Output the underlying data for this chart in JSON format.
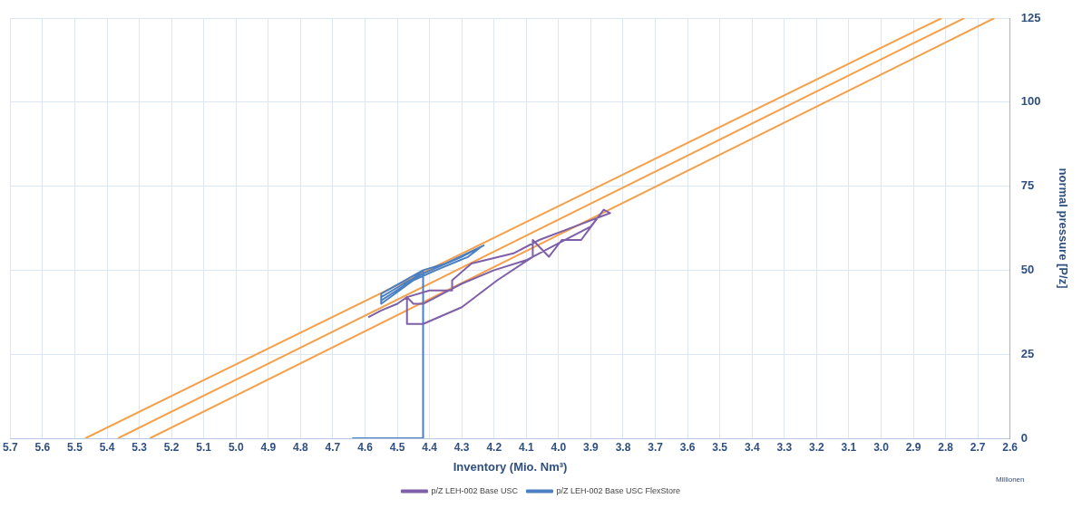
{
  "chart_data": {
    "type": "line",
    "xlabel": "Inventory (Mio. Nm³)",
    "ylabel": "normal pressure [P/z]",
    "annotations": [
      "Millionen"
    ],
    "xlim": [
      5.7,
      2.6
    ],
    "xticks": [
      5.7,
      5.6,
      5.5,
      5.4,
      5.3,
      5.2,
      5.1,
      {
        "value": 5,
        "label": "5.0"
      },
      4.9,
      4.8,
      4.7,
      4.6,
      4.5,
      4.4,
      4.3,
      4.2,
      4.1,
      {
        "value": 4,
        "label": "4.0"
      },
      3.9,
      3.8,
      3.7,
      3.6,
      3.5,
      3.4,
      3.3,
      3.2,
      3.1,
      {
        "value": 3,
        "label": "3.0"
      },
      2.9,
      2.8,
      2.7,
      2.6
    ],
    "ylim": [
      0,
      125
    ],
    "yticks": [
      0,
      25,
      50,
      75,
      100,
      125
    ],
    "grid": true,
    "legend": "bottom",
    "marker": "none",
    "line_style": "solid",
    "series": [
      {
        "name": "p/Z LEH-002 Base USC",
        "color": "#7e5fa8",
        "x": [
          4.59,
          4.55,
          4.5,
          4.47,
          4.47,
          4.42,
          4.3,
          4.19,
          4.08,
          4.08,
          4.03,
          3.99,
          3.93,
          3.86,
          3.84,
          3.95,
          4.06,
          4.14,
          4.27,
          4.33,
          4.33,
          4.4,
          4.47,
          4.45,
          4.42,
          4.3,
          4.2,
          4.1,
          4,
          3.9,
          3.86
        ],
        "values": [
          36,
          38,
          40,
          42,
          34,
          34,
          39,
          47,
          54,
          59,
          54,
          59,
          59,
          68,
          67,
          63,
          59,
          55,
          52,
          47,
          44,
          44,
          42,
          40,
          40,
          46,
          50,
          53,
          58,
          63,
          68
        ]
      },
      {
        "name": "p/Z LEH-002 Base USC FlexStore",
        "color": "#4a7fc1",
        "x": [
          4.64,
          4.42,
          4.42,
          4.47,
          4.55,
          4.55,
          4.42,
          4.35,
          4.24,
          4.28,
          4.38,
          4.45,
          4.55,
          4.55,
          4.48,
          4.42,
          4.3,
          4.23
        ],
        "values": [
          0,
          0,
          50,
          46,
          41,
          43,
          50,
          52,
          57,
          54,
          50,
          47,
          40,
          42,
          46,
          49,
          54,
          57.5
        ]
      },
      {
        "type": "line",
        "color": "#f5a04a",
        "x": [
          5.467,
          2.812
        ],
        "values": [
          0,
          125
        ]
      },
      {
        "type": "line",
        "color": "#f5a04a",
        "x": [
          5.366,
          2.742
        ],
        "values": [
          0,
          125
        ]
      },
      {
        "type": "line",
        "color": "#f5a04a",
        "x": [
          5.267,
          2.649
        ],
        "values": [
          0,
          125
        ]
      }
    ]
  }
}
